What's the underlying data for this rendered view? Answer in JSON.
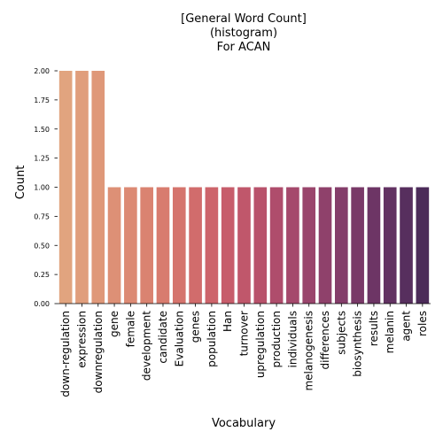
{
  "chart_data": {
    "type": "bar",
    "title_lines": [
      "[General Word Count]",
      "(histogram)",
      "For ACAN"
    ],
    "xlabel": "Vocabulary",
    "ylabel": "Count",
    "ylim": [
      0,
      2.0
    ],
    "yticks": [
      "0.00",
      "0.25",
      "0.50",
      "0.75",
      "1.00",
      "1.25",
      "1.50",
      "1.75",
      "2.00"
    ],
    "grid": false,
    "categories": [
      "down-regulation",
      "expression",
      "downregulation",
      "gene",
      "female",
      "development",
      "candidate",
      "Evaluation",
      "genes",
      "population",
      "Han",
      "turnover",
      "upregulation",
      "production",
      "individuals",
      "melanogenesis",
      "differences",
      "subjects",
      "biosynthesis",
      "results",
      "melanin",
      "agent",
      "roles"
    ],
    "values": [
      2,
      2,
      2,
      1,
      1,
      1,
      1,
      1,
      1,
      1,
      1,
      1,
      1,
      1,
      1,
      1,
      1,
      1,
      1,
      1,
      1,
      1,
      1
    ],
    "colors": [
      "#e1a47f",
      "#e09e7c",
      "#df9879",
      "#dd9076",
      "#dc8a74",
      "#da8371",
      "#d87c6f",
      "#d5746d",
      "#d16c6c",
      "#cd646b",
      "#c75d6b",
      "#c0576b",
      "#b8526b",
      "#af4d6c",
      "#a5496c",
      "#9a456c",
      "#8f416b",
      "#843d6a",
      "#793968",
      "#6d3565",
      "#623262",
      "#572f5e",
      "#4c2b59"
    ]
  }
}
